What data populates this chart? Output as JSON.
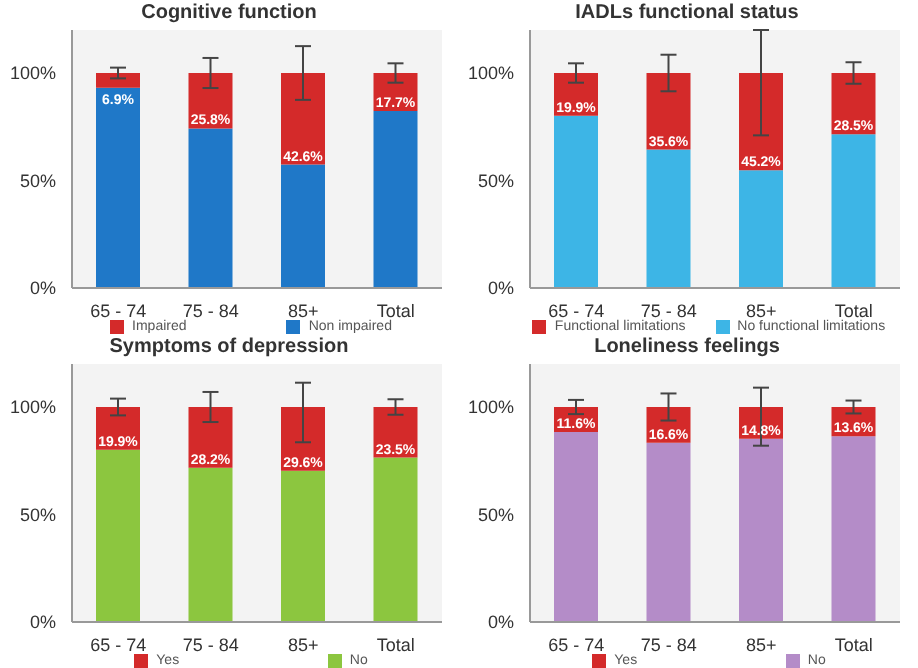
{
  "chart_data": [
    {
      "type": "bar",
      "title": "Cognitive function",
      "categories": [
        "65 - 74",
        "75 - 84",
        "85+",
        "Total"
      ],
      "stacked": true,
      "ylim": [
        0,
        120
      ],
      "yticks": [
        {
          "value": 0,
          "label": "0%"
        },
        {
          "value": 50,
          "label": "50%"
        },
        {
          "value": 100,
          "label": "100%"
        }
      ],
      "legend": "bottom",
      "series": [
        {
          "name": "Non impaired",
          "color": "#1f78c8",
          "values": [
            93.1,
            74.2,
            57.4,
            82.3
          ]
        },
        {
          "name": "Impaired",
          "color": "#d42a2a",
          "values": [
            6.9,
            25.8,
            42.6,
            17.7
          ],
          "value_labels": [
            "6.9%",
            "25.8%",
            "42.6%",
            "17.7%"
          ],
          "errors": [
            2.5,
            7,
            12.5,
            4.5
          ]
        }
      ]
    },
    {
      "type": "bar",
      "title": "IADLs functional status",
      "categories": [
        "65 - 74",
        "75 - 84",
        "85+",
        "Total"
      ],
      "stacked": true,
      "ylim": [
        0,
        120
      ],
      "yticks": [
        {
          "value": 0,
          "label": "0%"
        },
        {
          "value": 50,
          "label": "50%"
        },
        {
          "value": 100,
          "label": "100%"
        }
      ],
      "legend": "bottom",
      "series": [
        {
          "name": "No functional limitations",
          "color": "#3db5e6",
          "values": [
            80.1,
            64.4,
            54.8,
            71.5
          ]
        },
        {
          "name": "Functional limitations",
          "color": "#d42a2a",
          "values": [
            19.9,
            35.6,
            45.2,
            28.5
          ],
          "value_labels": [
            "19.9%",
            "35.6%",
            "45.2%",
            "28.5%"
          ],
          "errors": [
            4.5,
            8.5,
            [
              71,
              120
            ],
            5
          ]
        }
      ]
    },
    {
      "type": "bar",
      "title": "Symptoms of depression",
      "categories": [
        "65 - 74",
        "75 - 84",
        "85+",
        "Total"
      ],
      "stacked": true,
      "ylim": [
        0,
        120
      ],
      "yticks": [
        {
          "value": 0,
          "label": "0%"
        },
        {
          "value": 50,
          "label": "50%"
        },
        {
          "value": 100,
          "label": "100%"
        }
      ],
      "legend": "bottom",
      "series": [
        {
          "name": "No",
          "color": "#8cc63f",
          "values": [
            80.1,
            71.8,
            70.4,
            76.5
          ]
        },
        {
          "name": "Yes",
          "color": "#d42a2a",
          "values": [
            19.9,
            28.2,
            29.6,
            23.5
          ],
          "value_labels": [
            "19.9%",
            "28.2%",
            "29.6%",
            "23.5%"
          ],
          "errors": [
            3.9,
            7,
            [
              83.6,
              111.3
            ],
            3.6
          ]
        }
      ]
    },
    {
      "type": "bar",
      "title": "Loneliness feelings",
      "categories": [
        "65 - 74",
        "75 - 84",
        "85+",
        "Total"
      ],
      "stacked": true,
      "ylim": [
        0,
        120
      ],
      "yticks": [
        {
          "value": 0,
          "label": "0%"
        },
        {
          "value": 50,
          "label": "50%"
        },
        {
          "value": 100,
          "label": "100%"
        }
      ],
      "legend": "bottom",
      "series": [
        {
          "name": "No",
          "color": "#b48cc8",
          "values": [
            88.4,
            83.4,
            85.2,
            86.4
          ]
        },
        {
          "name": "Yes",
          "color": "#d42a2a",
          "values": [
            11.6,
            16.6,
            14.8,
            13.6
          ],
          "value_labels": [
            "11.6%",
            "16.6%",
            "14.8%",
            "13.6%"
          ],
          "errors": [
            3.3,
            6.3,
            [
              82,
              109
            ],
            3
          ]
        }
      ]
    }
  ]
}
